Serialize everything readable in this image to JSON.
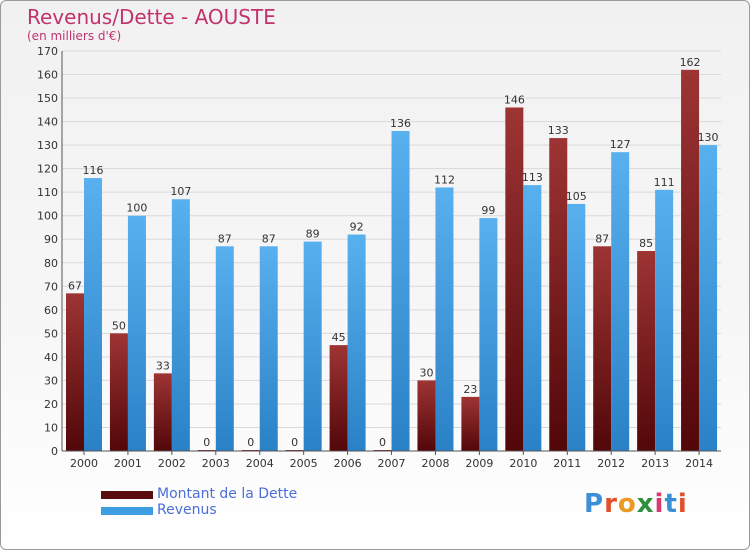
{
  "header": {
    "title": "Revenus/Dette - AOUSTE",
    "subtitle": "(en milliers d'€)"
  },
  "chart_data": {
    "type": "bar",
    "title": "Revenus/Dette - AOUSTE",
    "ylabel": "(en milliers d'€)",
    "xlabel": "",
    "ylim": [
      0,
      170
    ],
    "yticks": [
      0,
      10,
      20,
      30,
      40,
      50,
      60,
      70,
      80,
      90,
      100,
      110,
      120,
      130,
      140,
      150,
      160,
      170
    ],
    "grid": true,
    "legend_position": "bottom-left",
    "categories": [
      "2000",
      "2001",
      "2002",
      "2003",
      "2004",
      "2005",
      "2006",
      "2007",
      "2008",
      "2009",
      "2010",
      "2011",
      "2012",
      "2013",
      "2014"
    ],
    "series": [
      {
        "name": "Montant de la Dette",
        "color": "#7a1f22",
        "values": [
          67,
          50,
          33,
          0,
          0,
          0,
          45,
          0,
          30,
          23,
          146,
          133,
          87,
          85,
          162
        ]
      },
      {
        "name": "Revenus",
        "color": "#3d9ee3",
        "values": [
          116,
          100,
          107,
          87,
          87,
          89,
          92,
          136,
          112,
          99,
          113,
          105,
          127,
          111,
          130
        ]
      }
    ]
  },
  "legend": {
    "items": [
      {
        "label": "Montant de la Dette",
        "color": "#5a0d10"
      },
      {
        "label": "Revenus",
        "color": "#3d9ee3"
      }
    ]
  },
  "logo": {
    "text": "Proxiti",
    "colors": [
      "#3b8fd6",
      "#e0502a",
      "#e89a22",
      "#2e8f3d",
      "#d83a6f",
      "#3b8fd6",
      "#e0502a"
    ]
  }
}
